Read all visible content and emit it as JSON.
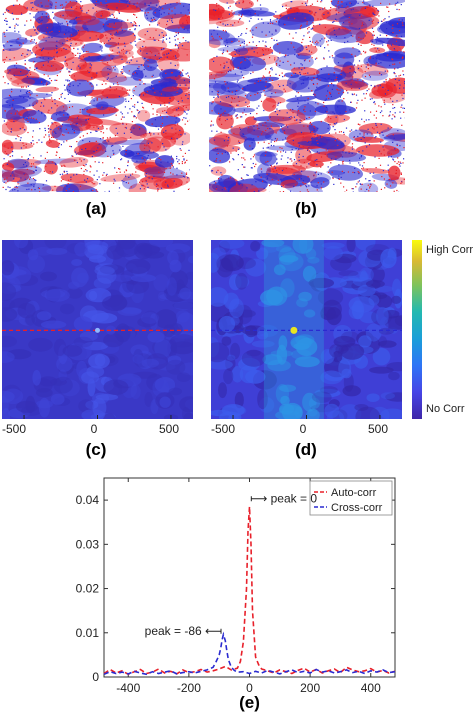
{
  "panel_labels": {
    "a": "(a)",
    "b": "(b)",
    "c": "(c)",
    "d": "(d)",
    "e": "(e)"
  },
  "colorbar": {
    "high_label": "High Corr",
    "low_label": "No Corr"
  },
  "chart_data": [
    {
      "type": "heatmap",
      "panel": "(c)",
      "xticks": [
        -500,
        0,
        500
      ],
      "xlim": [
        -650,
        650
      ],
      "colormap": "parula",
      "peak_x": 0,
      "overlay_line_color": "#e8202a"
    },
    {
      "type": "heatmap",
      "panel": "(d)",
      "xticks": [
        -500,
        0,
        500
      ],
      "xlim": [
        -650,
        650
      ],
      "colormap": "parula",
      "peak_x": -86,
      "overlay_line_color": "#2a2ad0"
    },
    {
      "type": "line",
      "panel": "(e)",
      "xlim": [
        -480,
        480
      ],
      "ylim": [
        0,
        0.045
      ],
      "xticks": [
        -400,
        -200,
        0,
        200,
        400
      ],
      "yticks": [
        0,
        0.01,
        0.02,
        0.03,
        0.04
      ],
      "legend_position": "top-right",
      "series": [
        {
          "name": "Auto-corr",
          "color": "#e8202a",
          "x": [
            -480,
            -460,
            -440,
            -420,
            -400,
            -380,
            -360,
            -340,
            -320,
            -300,
            -280,
            -260,
            -240,
            -220,
            -200,
            -180,
            -160,
            -140,
            -120,
            -100,
            -80,
            -60,
            -40,
            -30,
            -20,
            -10,
            -5,
            0,
            5,
            10,
            20,
            30,
            40,
            60,
            80,
            100,
            120,
            140,
            160,
            180,
            200,
            220,
            240,
            260,
            280,
            300,
            320,
            340,
            360,
            380,
            400,
            420,
            440,
            460,
            480
          ],
          "values": [
            0.0008,
            0.0017,
            0.0009,
            0.0014,
            0.0006,
            0.0012,
            0.0017,
            0.0008,
            0.0011,
            0.0018,
            0.0009,
            0.0013,
            0.0007,
            0.0016,
            0.001,
            0.0012,
            0.0017,
            0.0011,
            0.0014,
            0.0018,
            0.0024,
            0.0016,
            0.002,
            0.0035,
            0.008,
            0.02,
            0.033,
            0.0385,
            0.03,
            0.015,
            0.0045,
            0.0028,
            0.0018,
            0.0014,
            0.0009,
            0.0016,
            0.0012,
            0.0008,
            0.0015,
            0.002,
            0.0011,
            0.0017,
            0.0009,
            0.0014,
            0.0018,
            0.001,
            0.0022,
            0.0016,
            0.0012,
            0.0014,
            0.0019,
            0.0011,
            0.0015,
            0.0009,
            0.0013
          ]
        },
        {
          "name": "Cross-corr",
          "color": "#2a2ad0",
          "x": [
            -480,
            -460,
            -440,
            -420,
            -400,
            -380,
            -360,
            -340,
            -320,
            -300,
            -280,
            -260,
            -240,
            -220,
            -200,
            -180,
            -160,
            -140,
            -120,
            -110,
            -100,
            -95,
            -90,
            -86,
            -80,
            -75,
            -70,
            -60,
            -50,
            -40,
            -20,
            0,
            20,
            40,
            60,
            80,
            100,
            120,
            140,
            160,
            180,
            200,
            220,
            240,
            260,
            280,
            300,
            320,
            340,
            360,
            380,
            400,
            420,
            440,
            460,
            480
          ],
          "values": [
            0.0006,
            0.0012,
            0.0008,
            0.0011,
            0.0007,
            0.0013,
            0.0009,
            0.0006,
            0.0012,
            0.0008,
            0.0011,
            0.0014,
            0.0007,
            0.001,
            0.0012,
            0.0009,
            0.0013,
            0.0016,
            0.0022,
            0.0035,
            0.005,
            0.0065,
            0.0085,
            0.0096,
            0.0082,
            0.006,
            0.004,
            0.0022,
            0.0015,
            0.0011,
            0.0012,
            0.0008,
            0.0013,
            0.0009,
            0.0015,
            0.0011,
            0.0007,
            0.0012,
            0.0016,
            0.001,
            0.0013,
            0.0009,
            0.0017,
            0.0011,
            0.0014,
            0.0009,
            0.0012,
            0.0016,
            0.001,
            0.0013,
            0.0008,
            0.0014,
            0.0011,
            0.0016,
            0.001,
            0.0012
          ]
        }
      ],
      "annotations": [
        {
          "text": "peak = 0",
          "arrow": "⟼"
        },
        {
          "text": "peak = -86",
          "arrow": "⟻"
        }
      ]
    }
  ]
}
